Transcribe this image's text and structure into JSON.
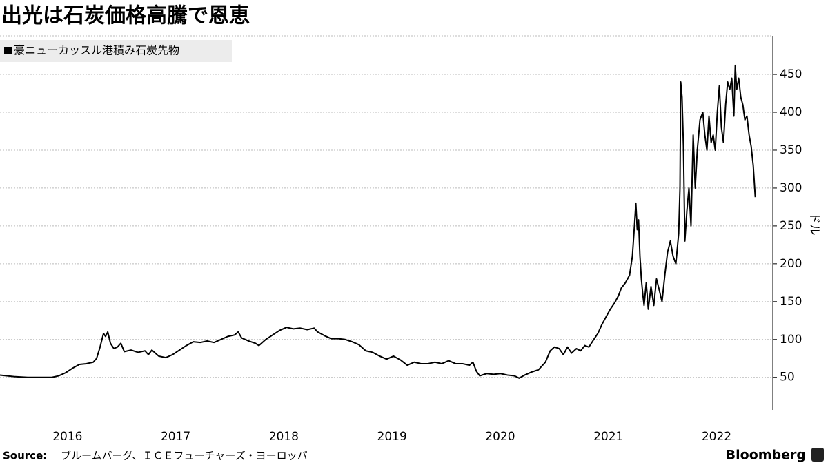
{
  "chart_data": {
    "type": "line",
    "title": "出光は石炭価格高騰で恩恵",
    "y_label": "ドル",
    "source_label": "Source:",
    "source": "ブルームバーグ、ＩＣＥフューチャーズ・ヨーロッパ",
    "brand": "Bloomberg",
    "grid": true,
    "xlim": [
      2015.876,
      2023.02
    ],
    "ylim": [
      7,
      501
    ],
    "xticks": [
      {
        "value": 2016.5,
        "label": "2016"
      },
      {
        "value": 2017.5,
        "label": "2017"
      },
      {
        "value": 2018.5,
        "label": "2018"
      },
      {
        "value": 2019.5,
        "label": "2019"
      },
      {
        "value": 2020.5,
        "label": "2020"
      },
      {
        "value": 2021.5,
        "label": "2021"
      },
      {
        "value": 2022.5,
        "label": "2022"
      }
    ],
    "yticks": [
      50,
      100,
      150,
      200,
      250,
      300,
      350,
      400,
      450
    ],
    "x": [
      2015.876,
      2016.004,
      2016.131,
      2016.259,
      2016.355,
      2016.418,
      2016.482,
      2016.546,
      2016.61,
      2016.674,
      2016.738,
      2016.769,
      2016.801,
      2016.833,
      2016.852,
      2016.872,
      2016.897,
      2016.929,
      2016.961,
      2016.993,
      2017.025,
      2017.089,
      2017.152,
      2017.216,
      2017.248,
      2017.28,
      2017.344,
      2017.408,
      2017.472,
      2017.535,
      2017.599,
      2017.663,
      2017.727,
      2017.791,
      2017.854,
      2017.918,
      2017.982,
      2018.046,
      2018.078,
      2018.11,
      2018.174,
      2018.237,
      2018.269,
      2018.333,
      2018.397,
      2018.461,
      2018.525,
      2018.588,
      2018.652,
      2018.716,
      2018.78,
      2018.812,
      2018.876,
      2018.939,
      2019.003,
      2019.067,
      2019.131,
      2019.195,
      2019.258,
      2019.322,
      2019.386,
      2019.45,
      2019.514,
      2019.578,
      2019.641,
      2019.705,
      2019.769,
      2019.833,
      2019.897,
      2019.96,
      2020.024,
      2020.088,
      2020.152,
      2020.216,
      2020.248,
      2020.28,
      2020.311,
      2020.375,
      2020.439,
      2020.503,
      2020.567,
      2020.631,
      2020.675,
      2020.726,
      2020.79,
      2020.854,
      2020.918,
      2020.962,
      2021.001,
      2021.045,
      2021.084,
      2021.122,
      2021.16,
      2021.205,
      2021.243,
      2021.282,
      2021.32,
      2021.365,
      2021.403,
      2021.441,
      2021.479,
      2021.518,
      2021.556,
      2021.594,
      2021.62,
      2021.658,
      2021.696,
      2021.722,
      2021.741,
      2021.754,
      2021.767,
      2021.779,
      2021.792,
      2021.805,
      2021.818,
      2021.83,
      2021.85,
      2021.869,
      2021.894,
      2021.92,
      2021.945,
      2021.971,
      2021.996,
      2022.022,
      2022.047,
      2022.073,
      2022.098,
      2022.124,
      2022.15,
      2022.162,
      2022.169,
      2022.181,
      2022.194,
      2022.207,
      2022.226,
      2022.245,
      2022.264,
      2022.284,
      2022.303,
      2022.322,
      2022.347,
      2022.373,
      2022.392,
      2022.411,
      2022.43,
      2022.45,
      2022.469,
      2022.488,
      2022.507,
      2022.526,
      2022.545,
      2022.564,
      2022.584,
      2022.603,
      2022.622,
      2022.641,
      2022.66,
      2022.673,
      2022.686,
      2022.705,
      2022.724,
      2022.743,
      2022.762,
      2022.781,
      2022.801,
      2022.82,
      2022.839,
      2022.858
    ],
    "series": [
      {
        "name": "豪ニューカッスル港積み石炭先物",
        "color": "#000000",
        "values": [
          53,
          51,
          50,
          50,
          50,
          52,
          56,
          62,
          67,
          68,
          70,
          75,
          90,
          108,
          104,
          110,
          95,
          88,
          90,
          95,
          84,
          86,
          83,
          85,
          80,
          86,
          78,
          76,
          80,
          86,
          92,
          97,
          96,
          98,
          96,
          100,
          104,
          106,
          110,
          102,
          98,
          95,
          92,
          100,
          106,
          112,
          116,
          114,
          115,
          113,
          115,
          110,
          105,
          101,
          101,
          100,
          97,
          93,
          85,
          83,
          78,
          74,
          78,
          73,
          66,
          70,
          68,
          68,
          70,
          68,
          72,
          68,
          68,
          66,
          70,
          58,
          52,
          55,
          54,
          55,
          53,
          52,
          49,
          53,
          57,
          60,
          70,
          85,
          90,
          88,
          80,
          90,
          82,
          88,
          85,
          92,
          90,
          100,
          108,
          120,
          130,
          140,
          148,
          158,
          168,
          175,
          185,
          210,
          250,
          280,
          245,
          258,
          210,
          180,
          160,
          145,
          175,
          140,
          170,
          145,
          180,
          165,
          150,
          185,
          215,
          230,
          210,
          200,
          240,
          300,
          440,
          420,
          355,
          230,
          270,
          300,
          250,
          370,
          300,
          350,
          390,
          400,
          370,
          350,
          395,
          360,
          370,
          350,
          400,
          435,
          380,
          360,
          410,
          440,
          430,
          445,
          395,
          462,
          430,
          445,
          420,
          410,
          390,
          395,
          370,
          355,
          330,
          288
        ]
      }
    ]
  }
}
